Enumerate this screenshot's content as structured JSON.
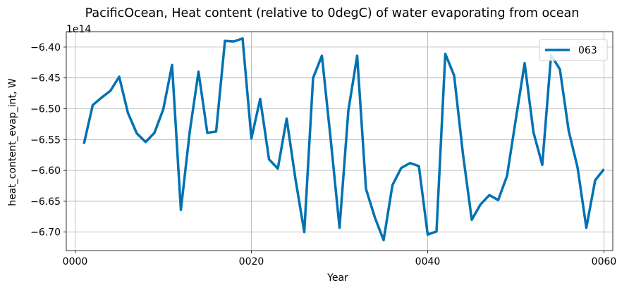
{
  "chart_data": {
    "type": "line",
    "title": "PacificOcean, Heat content (relative to 0degC) of water evaporating from ocean",
    "xlabel": "Year",
    "ylabel": "heat_content_evap_int, W",
    "y_offset_label": "1e14",
    "xlim": [
      -1,
      61
    ],
    "ylim": [
      -6.73,
      -6.375
    ],
    "x_ticks": [
      0,
      20,
      40,
      60
    ],
    "x_tick_labels": [
      "0000",
      "0020",
      "0040",
      "0060"
    ],
    "y_ticks": [
      -6.7,
      -6.65,
      -6.6,
      -6.55,
      -6.5,
      -6.45,
      -6.4
    ],
    "y_tick_labels": [
      "−6.70",
      "−6.65",
      "−6.60",
      "−6.55",
      "−6.50",
      "−6.45",
      "−6.40"
    ],
    "grid": true,
    "legend_position": "top-right",
    "series": [
      {
        "name": "063",
        "color": "#0072b2",
        "x": [
          1,
          2,
          3,
          4,
          5,
          6,
          7,
          8,
          9,
          10,
          11,
          12,
          13,
          14,
          15,
          16,
          17,
          18,
          19,
          20,
          21,
          22,
          23,
          24,
          25,
          26,
          27,
          28,
          29,
          30,
          31,
          32,
          33,
          34,
          35,
          36,
          37,
          38,
          39,
          40,
          41,
          42,
          43,
          44,
          45,
          46,
          47,
          48,
          49,
          50,
          51,
          52,
          53,
          54,
          55,
          56,
          57,
          58,
          59,
          60
        ],
        "values": [
          -6.557,
          -6.494,
          -6.482,
          -6.471,
          -6.448,
          -6.507,
          -6.54,
          -6.554,
          -6.539,
          -6.501,
          -6.429,
          -6.664,
          -6.538,
          -6.44,
          -6.539,
          -6.537,
          -6.39,
          -6.391,
          -6.386,
          -6.548,
          -6.484,
          -6.582,
          -6.597,
          -6.516,
          -6.614,
          -6.7,
          -6.45,
          -6.414,
          -6.55,
          -6.693,
          -6.503,
          -6.414,
          -6.63,
          -6.676,
          -6.713,
          -6.624,
          -6.596,
          -6.588,
          -6.593,
          -6.704,
          -6.699,
          -6.411,
          -6.446,
          -6.573,
          -6.68,
          -6.655,
          -6.64,
          -6.648,
          -6.609,
          -6.517,
          -6.426,
          -6.538,
          -6.591,
          -6.413,
          -6.436,
          -6.536,
          -6.595,
          -6.693,
          -6.616,
          -6.598
        ]
      }
    ]
  }
}
